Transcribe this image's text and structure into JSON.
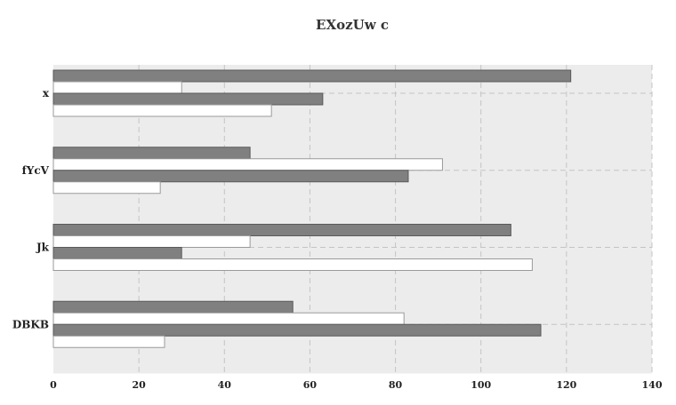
{
  "chart_data": {
    "type": "bar",
    "orientation": "horizontal",
    "title": "EXozUw c",
    "xlabel": "",
    "ylabel": "",
    "categories": [
      "x",
      "fYcV",
      "Jk",
      "DBKB"
    ],
    "series": [
      {
        "values": [
          121,
          46,
          107,
          56
        ],
        "color": "#808080"
      },
      {
        "values": [
          30,
          91,
          46,
          82
        ],
        "color": "#ffffff"
      },
      {
        "values": [
          63,
          83,
          30,
          114
        ],
        "color": "#808080"
      },
      {
        "values": [
          51,
          25,
          112,
          26
        ],
        "color": "#ffffff"
      }
    ],
    "xlim": [
      0,
      140
    ],
    "xticks": [
      0,
      20,
      40,
      60,
      80,
      100,
      120,
      140
    ],
    "grid": true,
    "background": "#ececec"
  }
}
